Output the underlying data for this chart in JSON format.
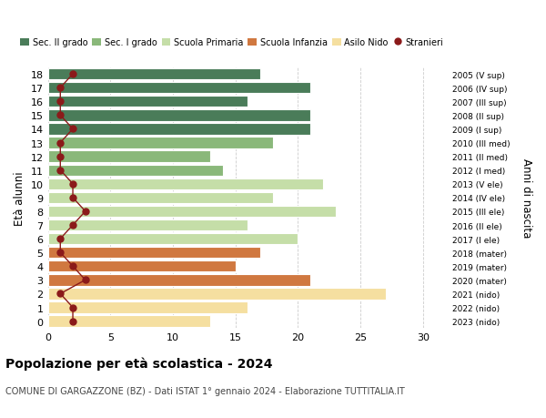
{
  "ages": [
    18,
    17,
    16,
    15,
    14,
    13,
    12,
    11,
    10,
    9,
    8,
    7,
    6,
    5,
    4,
    3,
    2,
    1,
    0
  ],
  "right_labels": [
    "2005 (V sup)",
    "2006 (IV sup)",
    "2007 (III sup)",
    "2008 (II sup)",
    "2009 (I sup)",
    "2010 (III med)",
    "2011 (II med)",
    "2012 (I med)",
    "2013 (V ele)",
    "2014 (IV ele)",
    "2015 (III ele)",
    "2016 (II ele)",
    "2017 (I ele)",
    "2018 (mater)",
    "2019 (mater)",
    "2020 (mater)",
    "2021 (nido)",
    "2022 (nido)",
    "2023 (nido)"
  ],
  "bar_values": [
    17,
    21,
    16,
    21,
    21,
    18,
    13,
    14,
    22,
    18,
    23,
    16,
    20,
    17,
    15,
    21,
    27,
    16,
    13
  ],
  "bar_colors": [
    "#4a7c59",
    "#4a7c59",
    "#4a7c59",
    "#4a7c59",
    "#4a7c59",
    "#8ab87a",
    "#8ab87a",
    "#8ab87a",
    "#c5dea8",
    "#c5dea8",
    "#c5dea8",
    "#c5dea8",
    "#c5dea8",
    "#d07840",
    "#d07840",
    "#d07840",
    "#f5dfa0",
    "#f5dfa0",
    "#f5dfa0"
  ],
  "stranieri_values": [
    2,
    1,
    1,
    1,
    2,
    1,
    1,
    1,
    2,
    2,
    3,
    2,
    1,
    1,
    2,
    3,
    1,
    2,
    2
  ],
  "stranieri_color": "#8b1a1a",
  "title": "Popolazione per età scolastica - 2024",
  "subtitle": "COMUNE DI GARGAZZONE (BZ) - Dati ISTAT 1° gennaio 2024 - Elaborazione TUTTITALIA.IT",
  "ylabel": "Età alunni",
  "right_ylabel": "Anni di nascita",
  "xlim": [
    0,
    32
  ],
  "xticks": [
    0,
    5,
    10,
    15,
    20,
    25,
    30
  ],
  "legend_labels": [
    "Sec. II grado",
    "Sec. I grado",
    "Scuola Primaria",
    "Scuola Infanzia",
    "Asilo Nido",
    "Stranieri"
  ],
  "legend_colors": [
    "#4a7c59",
    "#8ab87a",
    "#c5dea8",
    "#d07840",
    "#f5dfa0",
    "#8b1a1a"
  ],
  "background_color": "#ffffff",
  "grid_color": "#cccccc"
}
